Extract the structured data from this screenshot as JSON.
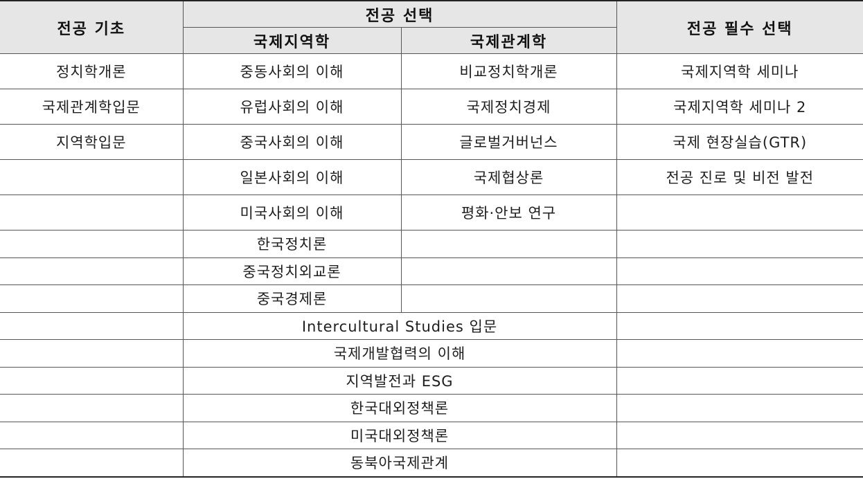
{
  "header": {
    "basic": "전공 기초",
    "elective": "전공 선택",
    "elective_regional": "국제지역학",
    "elective_relations": "국제관계학",
    "required": "전공 필수 선택"
  },
  "rows_split": [
    {
      "basic": "정치학개론",
      "regional": "중동사회의 이해",
      "relations": "비교정치학개론",
      "required": "국제지역학 세미나"
    },
    {
      "basic": "국제관계학입문",
      "regional": "유럽사회의 이해",
      "relations": "국제정치경제",
      "required": "국제지역학 세미나 2"
    },
    {
      "basic": "지역학입문",
      "regional": "중국사회의 이해",
      "relations": "글로벌거버넌스",
      "required": "국제 현장실습(GTR)"
    },
    {
      "basic": "",
      "regional": "일본사회의 이해",
      "relations": "국제협상론",
      "required": "전공 진로 및 비전 발전"
    },
    {
      "basic": "",
      "regional": "미국사회의 이해",
      "relations": "평화·안보 연구",
      "required": ""
    },
    {
      "basic": "",
      "regional": "한국정치론",
      "relations": "",
      "required": ""
    },
    {
      "basic": "",
      "regional": "중국정치외교론",
      "relations": "",
      "required": ""
    },
    {
      "basic": "",
      "regional": "중국경제론",
      "relations": "",
      "required": ""
    }
  ],
  "rows_common": [
    {
      "basic": "",
      "common": "Intercultural Studies 입문",
      "required": ""
    },
    {
      "basic": "",
      "common": "국제개발협력의 이해",
      "required": ""
    },
    {
      "basic": "",
      "common": "지역발전과 ESG",
      "required": ""
    },
    {
      "basic": "",
      "common": "한국대외정책론",
      "required": ""
    },
    {
      "basic": "",
      "common": "미국대외정책론",
      "required": ""
    },
    {
      "basic": "",
      "common": "동북아국제관계",
      "required": ""
    }
  ]
}
